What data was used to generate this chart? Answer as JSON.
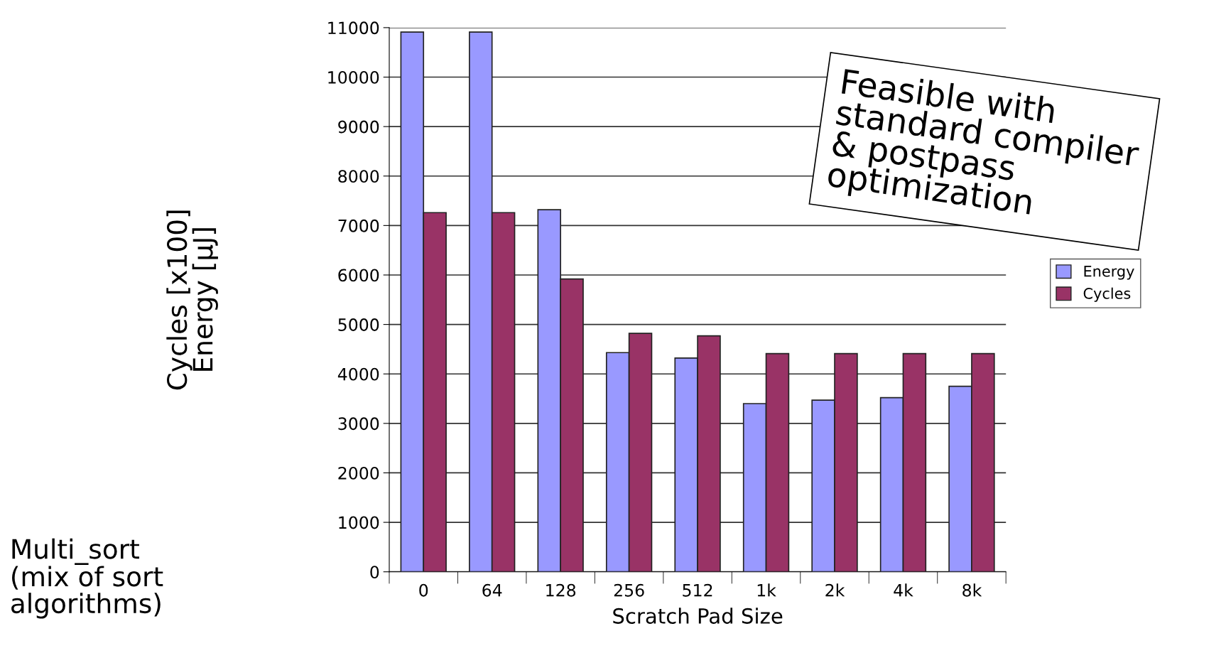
{
  "chart_data": {
    "type": "bar",
    "xlabel": "Scratch Pad Size",
    "ylabel": "Cycles [x100]\nEnergy [µJ]",
    "categories": [
      "0",
      "64",
      "128",
      "256",
      "512",
      "1k",
      "2k",
      "4k",
      "8k"
    ],
    "series": [
      {
        "name": "Energy",
        "color": "#9999ff",
        "values": [
          10910,
          10910,
          7320,
          4430,
          4320,
          3400,
          3470,
          3520,
          3750
        ]
      },
      {
        "name": "Cycles",
        "color": "#993366",
        "values": [
          7260,
          7260,
          5920,
          4820,
          4770,
          4410,
          4410,
          4410,
          4410
        ]
      }
    ],
    "ylim": [
      0,
      11000
    ],
    "yticks": [
      0,
      1000,
      2000,
      3000,
      4000,
      5000,
      6000,
      7000,
      8000,
      9000,
      10000,
      11000
    ],
    "grid": "y",
    "legend": "right",
    "annotations": [
      "Feasible with\nstandard compiler\n& postpass\noptimization",
      "Multi_sort\n(mix of sort\nalgorithms)"
    ]
  }
}
